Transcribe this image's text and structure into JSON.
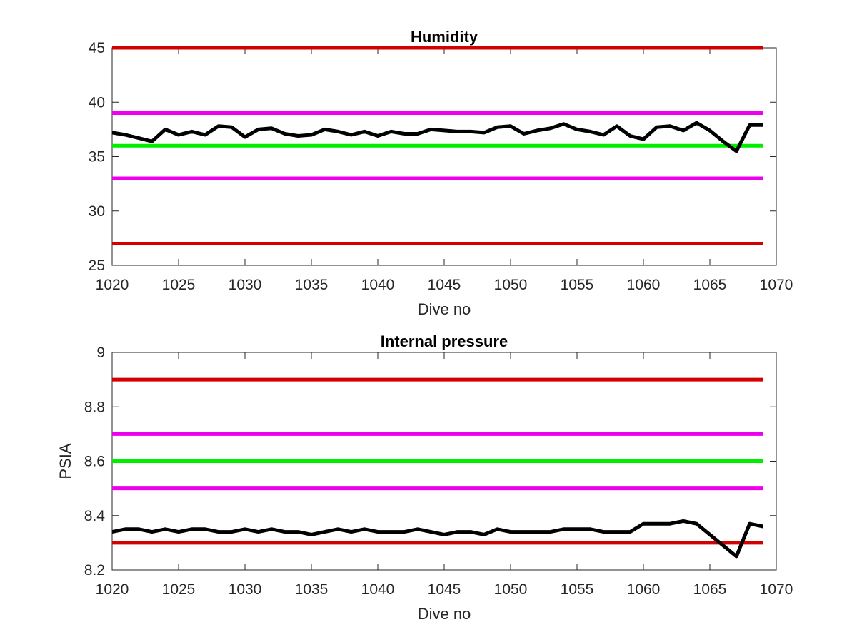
{
  "chart_data": [
    {
      "type": "line",
      "title": "Humidity",
      "xlabel": "Dive no",
      "ylabel": "",
      "xlim": [
        1020,
        1070
      ],
      "ylim": [
        25,
        45
      ],
      "xticks": [
        1020,
        1025,
        1030,
        1035,
        1040,
        1045,
        1050,
        1055,
        1060,
        1065,
        1070
      ],
      "yticks": [
        25,
        30,
        35,
        40,
        45
      ],
      "grid": false,
      "thresholds": [
        {
          "value": 45,
          "color": "#d40000"
        },
        {
          "value": 39,
          "color": "#ee00ee"
        },
        {
          "value": 36,
          "color": "#00ee00"
        },
        {
          "value": 33,
          "color": "#ee00ee"
        },
        {
          "value": 27,
          "color": "#d40000"
        }
      ],
      "series": [
        {
          "color": "#000000",
          "x": [
            1020,
            1021,
            1022,
            1023,
            1024,
            1025,
            1026,
            1027,
            1028,
            1029,
            1030,
            1031,
            1032,
            1033,
            1034,
            1035,
            1036,
            1037,
            1038,
            1039,
            1040,
            1041,
            1042,
            1043,
            1044,
            1045,
            1046,
            1047,
            1048,
            1049,
            1050,
            1051,
            1052,
            1053,
            1054,
            1055,
            1056,
            1057,
            1058,
            1059,
            1060,
            1061,
            1062,
            1063,
            1064,
            1065,
            1066,
            1067,
            1068,
            1069
          ],
          "values": [
            37.2,
            37.0,
            36.7,
            36.4,
            37.5,
            37.0,
            37.3,
            37.0,
            37.8,
            37.7,
            36.8,
            37.5,
            37.6,
            37.1,
            36.9,
            37.0,
            37.5,
            37.3,
            37.0,
            37.3,
            36.9,
            37.3,
            37.1,
            37.1,
            37.5,
            37.4,
            37.3,
            37.3,
            37.2,
            37.7,
            37.8,
            37.1,
            37.4,
            37.6,
            38.0,
            37.5,
            37.3,
            37.0,
            37.8,
            36.9,
            36.6,
            37.7,
            37.8,
            37.4,
            38.1,
            37.4,
            36.4,
            35.5,
            37.9,
            37.9
          ]
        }
      ]
    },
    {
      "type": "line",
      "title": "Internal pressure",
      "xlabel": "Dive no",
      "ylabel": "PSIA",
      "xlim": [
        1020,
        1070
      ],
      "ylim": [
        8.2,
        9
      ],
      "xticks": [
        1020,
        1025,
        1030,
        1035,
        1040,
        1045,
        1050,
        1055,
        1060,
        1065,
        1070
      ],
      "yticks": [
        8.2,
        8.4,
        8.6,
        8.8,
        9
      ],
      "grid": false,
      "thresholds": [
        {
          "value": 8.9,
          "color": "#d40000"
        },
        {
          "value": 8.7,
          "color": "#ee00ee"
        },
        {
          "value": 8.6,
          "color": "#00ee00"
        },
        {
          "value": 8.5,
          "color": "#ee00ee"
        },
        {
          "value": 8.3,
          "color": "#d40000"
        }
      ],
      "series": [
        {
          "color": "#000000",
          "x": [
            1020,
            1021,
            1022,
            1023,
            1024,
            1025,
            1026,
            1027,
            1028,
            1029,
            1030,
            1031,
            1032,
            1033,
            1034,
            1035,
            1036,
            1037,
            1038,
            1039,
            1040,
            1041,
            1042,
            1043,
            1044,
            1045,
            1046,
            1047,
            1048,
            1049,
            1050,
            1051,
            1052,
            1053,
            1054,
            1055,
            1056,
            1057,
            1058,
            1059,
            1060,
            1061,
            1062,
            1063,
            1064,
            1065,
            1066,
            1067,
            1068,
            1069
          ],
          "values": [
            8.34,
            8.35,
            8.35,
            8.34,
            8.35,
            8.34,
            8.35,
            8.35,
            8.34,
            8.34,
            8.35,
            8.34,
            8.35,
            8.34,
            8.34,
            8.33,
            8.34,
            8.35,
            8.34,
            8.35,
            8.34,
            8.34,
            8.34,
            8.35,
            8.34,
            8.33,
            8.34,
            8.34,
            8.33,
            8.35,
            8.34,
            8.34,
            8.34,
            8.34,
            8.35,
            8.35,
            8.35,
            8.34,
            8.34,
            8.34,
            8.37,
            8.37,
            8.37,
            8.38,
            8.37,
            8.33,
            8.29,
            8.25,
            8.37,
            8.36
          ]
        }
      ]
    }
  ]
}
